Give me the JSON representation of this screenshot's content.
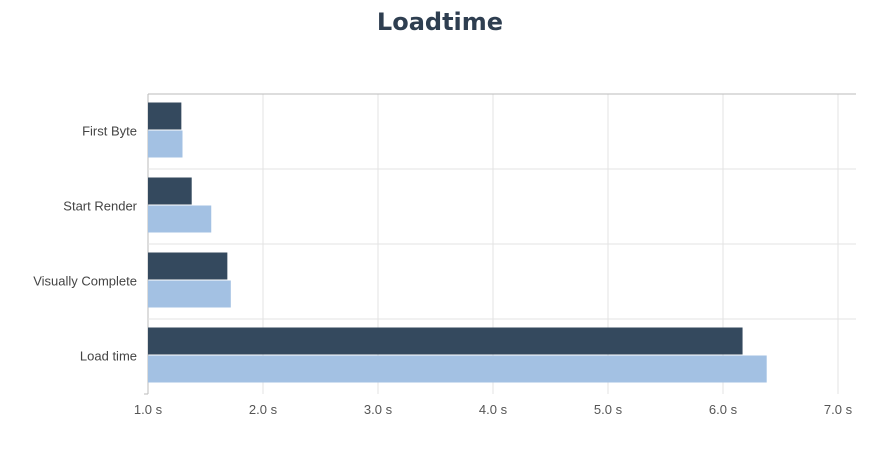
{
  "chart_data": {
    "type": "bar",
    "orientation": "horizontal",
    "title": "Loadtime",
    "categories": [
      "First Byte",
      "Start Render",
      "Visually Complete",
      "Load time"
    ],
    "series": [
      {
        "color": "#34495e",
        "values": [
          1.29,
          1.38,
          1.69,
          6.17
        ]
      },
      {
        "color": "#a3c1e3",
        "values": [
          1.3,
          1.55,
          1.72,
          6.38
        ]
      }
    ],
    "xlim": [
      1.0,
      7.0
    ],
    "xticks": [
      1.0,
      2.0,
      3.0,
      4.0,
      5.0,
      6.0,
      7.0
    ],
    "tick_suffix": " s",
    "grid": true,
    "legend": "none"
  }
}
